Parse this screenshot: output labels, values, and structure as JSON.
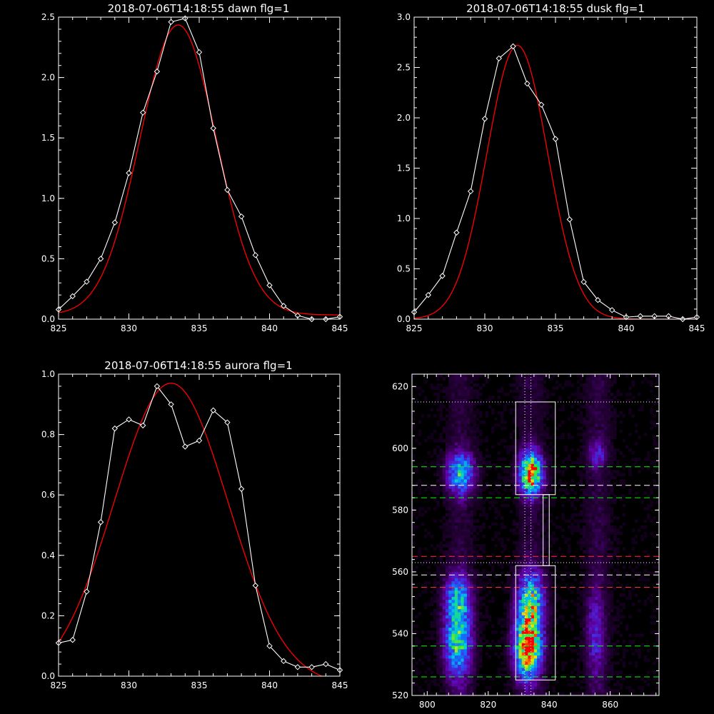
{
  "colors": {
    "background": "#000000",
    "axes": "#ffffff",
    "data_line": "#ffffff",
    "fit_line": "#ff0000",
    "green_marker": "#00ff00",
    "red_marker": "#ff3030"
  },
  "chart_data": [
    {
      "type": "line",
      "title": "2018-07-06T14:18:55 dawn flg=1",
      "xlim": [
        825,
        845
      ],
      "ylim": [
        0,
        2.5
      ],
      "xticks": [
        825,
        830,
        835,
        840,
        845
      ],
      "yticks": [
        0.0,
        0.5,
        1.0,
        1.5,
        2.0,
        2.5
      ],
      "xtick_labels": [
        "825",
        "830",
        "835",
        "840",
        "845"
      ],
      "ytick_labels": [
        "0.0",
        "0.5",
        "1.0",
        "1.5",
        "2.0",
        "2.5"
      ],
      "series": [
        {
          "x": [
            825,
            826,
            827,
            828,
            829,
            830,
            831,
            832,
            833,
            834,
            835,
            836,
            837,
            838,
            839,
            840,
            841,
            842,
            843,
            844,
            845
          ],
          "y": [
            0.08,
            0.19,
            0.31,
            0.5,
            0.8,
            1.21,
            1.71,
            2.05,
            2.46,
            2.49,
            2.21,
            1.58,
            1.07,
            0.85,
            0.53,
            0.28,
            0.11,
            0.03,
            0.0,
            0.0,
            0.02
          ]
        },
        {
          "fit": {
            "amp": 2.4,
            "center": 833.5,
            "sigma": 2.72,
            "offset": 0.035
          }
        }
      ]
    },
    {
      "type": "line",
      "title": "2018-07-06T14:18:55 dusk flg=1",
      "xlim": [
        825,
        845
      ],
      "ylim": [
        0,
        3.0
      ],
      "xticks": [
        825,
        830,
        835,
        840,
        845
      ],
      "yticks": [
        0.0,
        0.5,
        1.0,
        1.5,
        2.0,
        2.5,
        3.0
      ],
      "xtick_labels": [
        "825",
        "830",
        "835",
        "840",
        "845"
      ],
      "ytick_labels": [
        "0.0",
        "0.5",
        "1.0",
        "1.5",
        "2.0",
        "2.5",
        "3.0"
      ],
      "series": [
        {
          "x": [
            825,
            826,
            827,
            828,
            829,
            830,
            831,
            832,
            833,
            834,
            835,
            836,
            837,
            838,
            839,
            840,
            841,
            842,
            843,
            844,
            845
          ],
          "y": [
            0.07,
            0.24,
            0.43,
            0.86,
            1.27,
            1.99,
            2.59,
            2.71,
            2.34,
            2.13,
            1.79,
            0.99,
            0.37,
            0.19,
            0.09,
            0.02,
            0.03,
            0.03,
            0.03,
            0.0,
            0.02
          ]
        },
        {
          "fit": {
            "amp": 2.72,
            "center": 832.3,
            "sigma": 2.15,
            "offset": 0.0
          }
        }
      ]
    },
    {
      "type": "line",
      "title": "2018-07-06T14:18:55 aurora flg=1",
      "xlim": [
        825,
        845
      ],
      "ylim": [
        0,
        1.0
      ],
      "xticks": [
        825,
        830,
        835,
        840,
        845
      ],
      "yticks": [
        0.0,
        0.2,
        0.4,
        0.6,
        0.8,
        1.0
      ],
      "xtick_labels": [
        "825",
        "830",
        "835",
        "840",
        "845"
      ],
      "ytick_labels": [
        "0.0",
        "0.2",
        "0.4",
        "0.6",
        "0.8",
        "1.0"
      ],
      "series": [
        {
          "x": [
            825,
            826,
            827,
            828,
            829,
            830,
            831,
            832,
            833,
            834,
            835,
            836,
            837,
            838,
            839,
            840,
            841,
            842,
            843,
            844,
            845
          ],
          "y": [
            0.11,
            0.12,
            0.28,
            0.51,
            0.82,
            0.85,
            0.83,
            0.96,
            0.9,
            0.76,
            0.78,
            0.88,
            0.84,
            0.62,
            0.3,
            0.1,
            0.05,
            0.03,
            0.03,
            0.04,
            0.02
          ]
        },
        {
          "fit": {
            "amp": 1.0,
            "center": 833.0,
            "sigma": 4.05,
            "offset": -0.03
          }
        }
      ]
    },
    {
      "type": "heatmap",
      "title": "",
      "xlim": [
        795,
        876
      ],
      "ylim": [
        520,
        624
      ],
      "xticks": [
        800,
        820,
        840,
        860
      ],
      "yticks": [
        520,
        540,
        560,
        580,
        600,
        620
      ],
      "xtick_labels": [
        "800",
        "820",
        "840",
        "860"
      ],
      "ytick_labels": [
        "520",
        "540",
        "560",
        "580",
        "600",
        "620"
      ],
      "blobs": [
        {
          "x": 811,
          "y": 592,
          "sx": 3.0,
          "sy": 4.5,
          "amp": 0.55
        },
        {
          "x": 834,
          "y": 592,
          "sx": 2.5,
          "sy": 4.5,
          "amp": 0.95
        },
        {
          "x": 856,
          "y": 598,
          "sx": 2.0,
          "sy": 3.0,
          "amp": 0.22
        },
        {
          "x": 810,
          "y": 538,
          "sx": 3.0,
          "sy": 8.0,
          "amp": 0.6
        },
        {
          "x": 810,
          "y": 552,
          "sx": 3.0,
          "sy": 5.0,
          "amp": 0.4
        },
        {
          "x": 833,
          "y": 536,
          "sx": 3.0,
          "sy": 7.0,
          "amp": 0.95
        },
        {
          "x": 834,
          "y": 551,
          "sx": 3.0,
          "sy": 6.0,
          "amp": 0.6
        },
        {
          "x": 855,
          "y": 540,
          "sx": 2.0,
          "sy": 9.0,
          "amp": 0.22
        }
      ],
      "boxes": [
        {
          "x0": 829,
          "x1": 842,
          "y0": 585,
          "y1": 615
        },
        {
          "x0": 829,
          "x1": 842,
          "y0": 525,
          "y1": 562
        },
        {
          "x0": 838,
          "x1": 840,
          "y0": 562,
          "y1": 585
        }
      ],
      "hlines": [
        {
          "y": 615,
          "color": "#ffffff",
          "dash": "1,3"
        },
        {
          "y": 594,
          "color": "#00ff00",
          "dash": "8,5"
        },
        {
          "y": 588,
          "color": "#ffffff",
          "dash": "8,5"
        },
        {
          "y": 584,
          "color": "#00ff00",
          "dash": "8,5"
        },
        {
          "y": 565,
          "color": "#ff3030",
          "dash": "8,5"
        },
        {
          "y": 563,
          "color": "#ffffff",
          "dash": "1,3"
        },
        {
          "y": 559,
          "color": "#ffffff",
          "dash": "8,5"
        },
        {
          "y": 555,
          "color": "#ff3030",
          "dash": "8,5"
        },
        {
          "y": 536,
          "color": "#00ff00",
          "dash": "8,5"
        },
        {
          "y": 526,
          "color": "#00ff00",
          "dash": "8,5"
        }
      ],
      "vlines": [
        {
          "x": 832,
          "color": "#ffffff",
          "dash": "1,3"
        },
        {
          "x": 834,
          "color": "#ffffff",
          "dash": "1,3"
        }
      ]
    }
  ]
}
